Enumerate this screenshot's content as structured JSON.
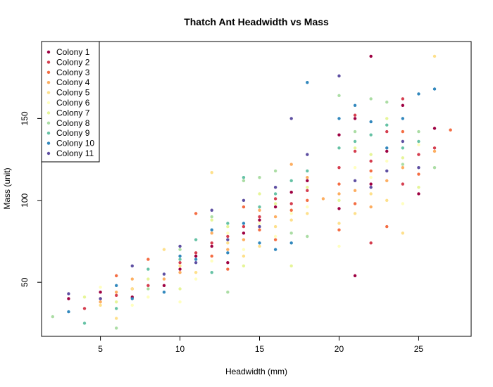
{
  "chart_data": {
    "type": "scatter",
    "title": "Thatch Ant Headwidth vs Mass",
    "xlabel": "Headwidth (mm)",
    "ylabel": "Mass (unit)",
    "xlim": [
      1.3,
      28.3
    ],
    "ylim": [
      17,
      197
    ],
    "xticks": [
      5,
      10,
      15,
      20,
      25
    ],
    "yticks": [
      50,
      100,
      150
    ],
    "grid": false,
    "legend_position": "top-left",
    "series": [
      {
        "name": "Colony 1",
        "color": "#9E0142",
        "points": [
          [
            3,
            40
          ],
          [
            5,
            44
          ],
          [
            7,
            41
          ],
          [
            9,
            48
          ],
          [
            10,
            58
          ],
          [
            11,
            66
          ],
          [
            12,
            72
          ],
          [
            13,
            62
          ],
          [
            14,
            80
          ],
          [
            15,
            88
          ],
          [
            16,
            96
          ],
          [
            17,
            105
          ],
          [
            18,
            112
          ],
          [
            20,
            95
          ],
          [
            20,
            140
          ],
          [
            21,
            150
          ],
          [
            21,
            54
          ],
          [
            22,
            110
          ],
          [
            22,
            188
          ],
          [
            23,
            130
          ],
          [
            24,
            158
          ],
          [
            25,
            104
          ],
          [
            26,
            144
          ]
        ]
      },
      {
        "name": "Colony 2",
        "color": "#D53E4F",
        "points": [
          [
            4,
            34
          ],
          [
            6,
            42
          ],
          [
            8,
            48
          ],
          [
            10,
            62
          ],
          [
            11,
            68
          ],
          [
            12,
            74
          ],
          [
            13,
            78
          ],
          [
            14,
            84
          ],
          [
            15,
            90
          ],
          [
            16,
            101
          ],
          [
            17,
            98
          ],
          [
            18,
            106
          ],
          [
            20,
            120
          ],
          [
            21,
            130
          ],
          [
            21,
            152
          ],
          [
            22,
            124
          ],
          [
            22,
            74
          ],
          [
            23,
            142
          ],
          [
            24,
            162
          ],
          [
            24,
            110
          ],
          [
            25,
            128
          ],
          [
            26,
            132
          ]
        ]
      },
      {
        "name": "Colony 3",
        "color": "#F46D43",
        "points": [
          [
            5,
            40
          ],
          [
            6,
            54
          ],
          [
            7,
            46
          ],
          [
            8,
            64
          ],
          [
            11,
            92
          ],
          [
            12,
            66
          ],
          [
            13,
            58
          ],
          [
            14,
            96
          ],
          [
            15,
            82
          ],
          [
            16,
            76
          ],
          [
            17,
            94
          ],
          [
            18,
            100
          ],
          [
            20,
            110
          ],
          [
            20,
            82
          ],
          [
            21,
            98
          ],
          [
            22,
            118
          ],
          [
            23,
            84
          ],
          [
            24,
            142
          ],
          [
            25,
            116
          ],
          [
            27,
            143
          ]
        ]
      },
      {
        "name": "Colony 4",
        "color": "#FDAE61",
        "points": [
          [
            5,
            38
          ],
          [
            6,
            44
          ],
          [
            7,
            52
          ],
          [
            9,
            52
          ],
          [
            10,
            56
          ],
          [
            12,
            80
          ],
          [
            13,
            70
          ],
          [
            14,
            76
          ],
          [
            15,
            94
          ],
          [
            16,
            90
          ],
          [
            17,
            122
          ],
          [
            18,
            114
          ],
          [
            19,
            101
          ],
          [
            20,
            104
          ],
          [
            21,
            106
          ],
          [
            22,
            96
          ],
          [
            23,
            112
          ],
          [
            24,
            120
          ],
          [
            26,
            130
          ]
        ]
      },
      {
        "name": "Colony 5",
        "color": "#FEE08B",
        "points": [
          [
            5,
            36
          ],
          [
            6,
            28
          ],
          [
            7,
            46
          ],
          [
            9,
            70
          ],
          [
            10,
            60
          ],
          [
            11,
            56
          ],
          [
            12,
            117
          ],
          [
            13,
            74
          ],
          [
            14,
            66
          ],
          [
            15,
            72
          ],
          [
            16,
            84
          ],
          [
            17,
            88
          ],
          [
            18,
            92
          ],
          [
            20,
            86
          ],
          [
            21,
            92
          ],
          [
            22,
            104
          ],
          [
            23,
            100
          ],
          [
            24,
            80
          ],
          [
            26,
            188
          ]
        ]
      },
      {
        "name": "Colony 6",
        "color": "#FFFFBF",
        "points": [
          [
            5,
            47
          ],
          [
            7,
            36
          ],
          [
            8,
            41
          ],
          [
            10,
            38
          ],
          [
            11,
            52
          ],
          [
            12,
            63
          ],
          [
            13,
            80
          ],
          [
            14,
            70
          ],
          [
            15,
            86
          ],
          [
            16,
            78
          ],
          [
            17,
            92
          ],
          [
            18,
            96
          ],
          [
            20,
            72
          ],
          [
            21,
            120
          ],
          [
            22,
            114
          ],
          [
            23,
            124
          ],
          [
            24,
            98
          ],
          [
            25,
            134
          ]
        ]
      },
      {
        "name": "Colony 7",
        "color": "#E6F598",
        "points": [
          [
            4,
            41
          ],
          [
            6,
            38
          ],
          [
            8,
            52
          ],
          [
            10,
            46
          ],
          [
            12,
            88
          ],
          [
            13,
            84
          ],
          [
            14,
            60
          ],
          [
            15,
            104
          ],
          [
            16,
            98
          ],
          [
            17,
            60
          ],
          [
            18,
            108
          ],
          [
            20,
            100
          ],
          [
            21,
            132
          ],
          [
            22,
            128
          ],
          [
            23,
            150
          ],
          [
            24,
            126
          ],
          [
            25,
            108
          ]
        ]
      },
      {
        "name": "Colony 8",
        "color": "#ABDDA4",
        "points": [
          [
            2,
            29
          ],
          [
            6,
            22
          ],
          [
            8,
            46
          ],
          [
            10,
            70
          ],
          [
            12,
            90
          ],
          [
            13,
            44
          ],
          [
            14,
            112
          ],
          [
            15,
            114
          ],
          [
            16,
            118
          ],
          [
            17,
            80
          ],
          [
            18,
            78
          ],
          [
            20,
            164
          ],
          [
            21,
            142
          ],
          [
            22,
            162
          ],
          [
            23,
            160
          ],
          [
            24,
            122
          ],
          [
            25,
            142
          ],
          [
            26,
            120
          ]
        ]
      },
      {
        "name": "Colony 9",
        "color": "#66C2A5",
        "points": [
          [
            4,
            25
          ],
          [
            6,
            34
          ],
          [
            8,
            58
          ],
          [
            10,
            64
          ],
          [
            11,
            76
          ],
          [
            12,
            56
          ],
          [
            13,
            86
          ],
          [
            14,
            114
          ],
          [
            15,
            96
          ],
          [
            16,
            104
          ],
          [
            17,
            112
          ],
          [
            18,
            118
          ],
          [
            20,
            132
          ],
          [
            21,
            136
          ],
          [
            22,
            140
          ],
          [
            23,
            146
          ],
          [
            24,
            132
          ],
          [
            25,
            136
          ]
        ]
      },
      {
        "name": "Colony 10",
        "color": "#3288BD",
        "points": [
          [
            3,
            32
          ],
          [
            6,
            48
          ],
          [
            7,
            40
          ],
          [
            9,
            44
          ],
          [
            10,
            66
          ],
          [
            11,
            64
          ],
          [
            12,
            82
          ],
          [
            13,
            68
          ],
          [
            14,
            86
          ],
          [
            15,
            74
          ],
          [
            16,
            70
          ],
          [
            17,
            74
          ],
          [
            18,
            172
          ],
          [
            20,
            150
          ],
          [
            21,
            158
          ],
          [
            22,
            148
          ],
          [
            23,
            132
          ],
          [
            24,
            150
          ],
          [
            25,
            165
          ],
          [
            26,
            168
          ]
        ]
      },
      {
        "name": "Colony 11",
        "color": "#5E4FA2",
        "points": [
          [
            3,
            43
          ],
          [
            5,
            40
          ],
          [
            7,
            60
          ],
          [
            9,
            55
          ],
          [
            10,
            72
          ],
          [
            11,
            62
          ],
          [
            12,
            94
          ],
          [
            13,
            76
          ],
          [
            14,
            100
          ],
          [
            15,
            84
          ],
          [
            16,
            108
          ],
          [
            17,
            150
          ],
          [
            18,
            128
          ],
          [
            20,
            176
          ],
          [
            21,
            112
          ],
          [
            22,
            108
          ],
          [
            23,
            118
          ],
          [
            24,
            136
          ],
          [
            25,
            120
          ]
        ]
      }
    ]
  }
}
